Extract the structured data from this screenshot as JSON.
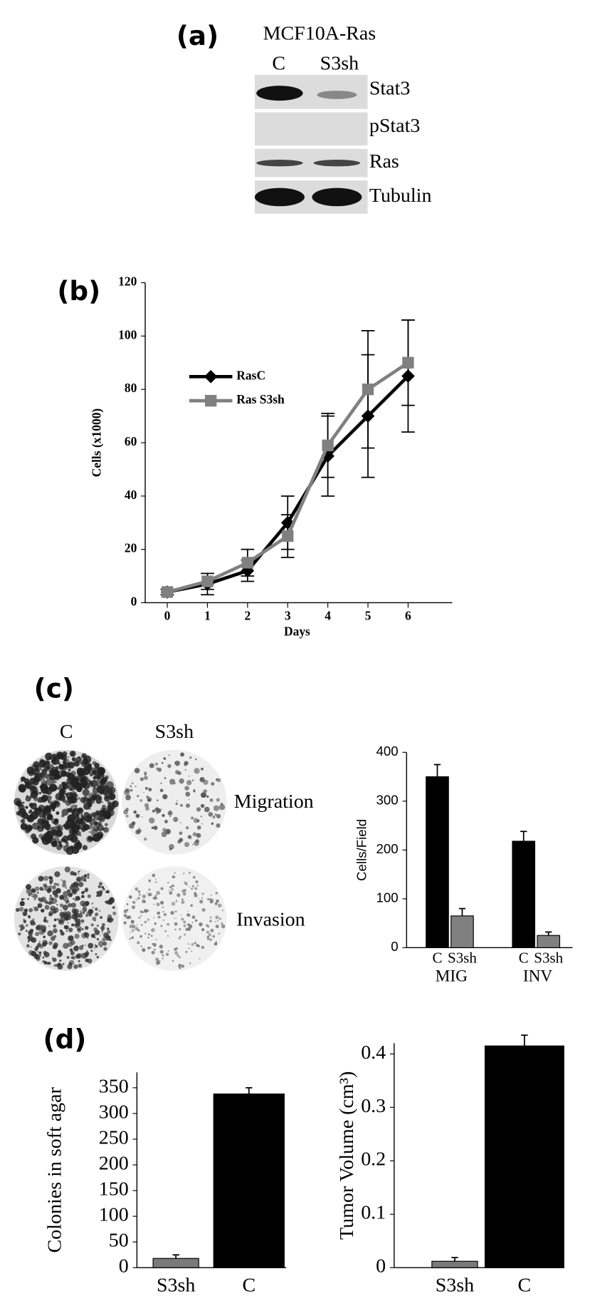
{
  "panel_labels": [
    "(a)",
    "(b)",
    "(c)",
    "(d)"
  ],
  "western_blot": {
    "title": "MCF10A-Ras",
    "lanes": [
      "C",
      "S3sh"
    ],
    "rows": [
      "Stat3",
      "pStat3",
      "Ras",
      "Tubulin"
    ]
  },
  "micrographs": {
    "columns": [
      "C",
      "S3sh"
    ],
    "rows": [
      "Migration",
      "Invasion"
    ]
  },
  "chart_data": [
    {
      "type": "line",
      "xlabel": "Days",
      "ylabel": "Cells (x1000)",
      "x": [
        0,
        1,
        2,
        3,
        4,
        5,
        6
      ],
      "xlim": [
        -0.55,
        7.1
      ],
      "xticks": [
        0,
        1,
        2,
        3,
        4,
        5,
        6
      ],
      "ylim": [
        0,
        120
      ],
      "yticks": [
        0,
        20,
        40,
        60,
        80,
        100,
        120
      ],
      "series": [
        {
          "name": "RasC",
          "color": "#000000",
          "marker": "diamond",
          "values": [
            4,
            7,
            12,
            30,
            55,
            70,
            85
          ],
          "errors": [
            1,
            4,
            4,
            10,
            15,
            23,
            21
          ]
        },
        {
          "name": "Ras S3sh",
          "color": "#808080",
          "marker": "square",
          "values": [
            4,
            8,
            15,
            25,
            59,
            80,
            90
          ],
          "errors": [
            1,
            3,
            5,
            8,
            12,
            22,
            16
          ]
        }
      ]
    },
    {
      "type": "bar",
      "ylabel": "Cells/Field",
      "categories": [
        "MIG",
        "INV"
      ],
      "ylim": [
        0,
        400
      ],
      "yticks": [
        0,
        100,
        200,
        300,
        400
      ],
      "series": [
        {
          "name": "C",
          "color": "#000000",
          "values": [
            350,
            218
          ],
          "errors": [
            25,
            20
          ]
        },
        {
          "name": "S3sh",
          "color": "#808080",
          "values": [
            65,
            25
          ],
          "errors": [
            15,
            7
          ]
        }
      ]
    },
    {
      "type": "bar",
      "ylabel": "Colonies in soft agar",
      "categories": [
        "S3sh",
        "C"
      ],
      "values": [
        18,
        338
      ],
      "errors": [
        7,
        12
      ],
      "colors": [
        "#7a7a7a",
        "#000000"
      ],
      "ylim": [
        0,
        380
      ],
      "yticks": [
        0,
        50,
        100,
        150,
        200,
        250,
        300,
        350
      ]
    },
    {
      "type": "bar",
      "ylabel": "Tumor Volume (cm³)",
      "categories": [
        "S3sh",
        "C"
      ],
      "values": [
        0.012,
        0.415
      ],
      "errors": [
        0.007,
        0.02
      ],
      "colors": [
        "#7a7a7a",
        "#000000"
      ],
      "ylim": [
        0,
        0.42
      ],
      "yticks": [
        0,
        0.1,
        0.2,
        0.3,
        0.4
      ]
    }
  ]
}
